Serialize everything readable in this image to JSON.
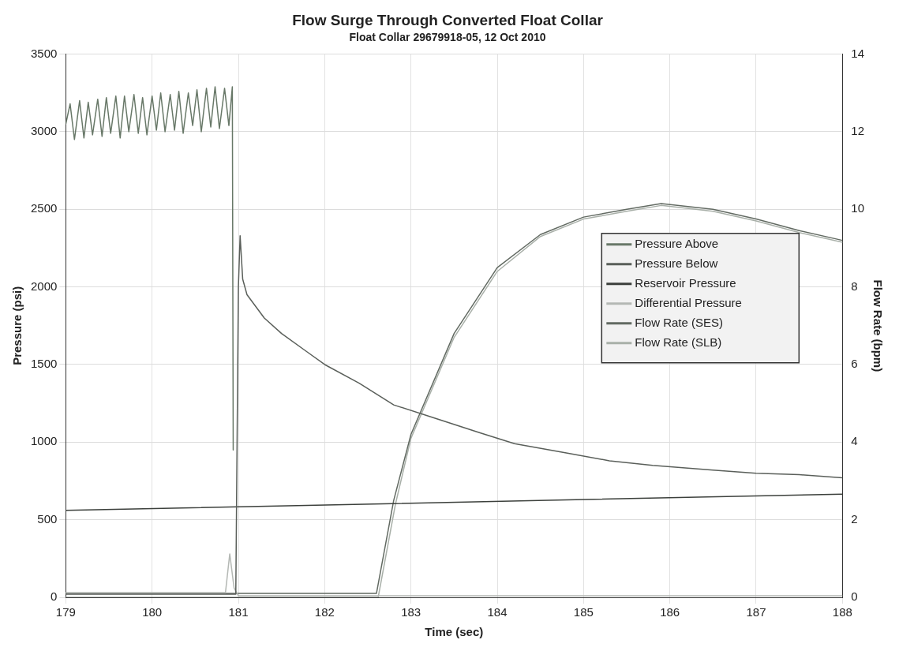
{
  "chart_data": {
    "type": "line",
    "title": "Flow Surge Through Converted Float Collar",
    "subtitle": "Float Collar 29679918-05, 12 Oct 2010",
    "xlabel": "Time (sec)",
    "ylabel": "Pressure (psi)",
    "y2label": "Flow Rate (bpm)",
    "xlim": [
      179,
      188
    ],
    "xticks": [
      179,
      180,
      181,
      182,
      183,
      184,
      185,
      186,
      187,
      188
    ],
    "ylim": [
      0,
      3500
    ],
    "yticks": [
      0,
      500,
      1000,
      1500,
      2000,
      2500,
      3000,
      3500
    ],
    "y2lim": [
      0,
      14
    ],
    "y2ticks": [
      0,
      2,
      4,
      6,
      8,
      10,
      12,
      14
    ],
    "grid": true,
    "legend": "right",
    "marker": "none",
    "line_style": "solid",
    "series": [
      {
        "name": "Pressure Above",
        "color": "#687868",
        "x": [
          179,
          179.05,
          179.1,
          179.16,
          179.21,
          179.26,
          179.31,
          179.37,
          179.42,
          179.47,
          179.52,
          179.58,
          179.63,
          179.68,
          179.73,
          179.79,
          179.84,
          179.89,
          179.94,
          180,
          180.05,
          180.1,
          180.15,
          180.21,
          180.26,
          180.31,
          180.36,
          180.42,
          180.47,
          180.52,
          180.57,
          180.63,
          180.68,
          180.73,
          180.78,
          180.84,
          180.89,
          180.93,
          180.94
        ],
        "values": [
          3050,
          3180,
          2950,
          3200,
          2960,
          3190,
          2980,
          3210,
          2970,
          3220,
          2990,
          3230,
          2960,
          3230,
          3000,
          3240,
          2990,
          3220,
          2980,
          3230,
          3010,
          3250,
          3000,
          3240,
          3010,
          3260,
          2990,
          3250,
          3040,
          3270,
          3000,
          3280,
          3030,
          3290,
          3020,
          3280,
          3040,
          3290,
          950
        ]
      },
      {
        "name": "Pressure Below",
        "color": "#5a5f5a",
        "x": [
          179,
          180.9,
          180.97,
          181,
          181.02,
          181.05,
          181.1,
          181.3,
          181.5,
          181.8,
          182,
          182.4,
          182.8,
          183.3,
          183.8,
          184.2,
          184.8,
          185.3,
          185.8,
          186.5,
          187,
          187.5,
          188
        ],
        "values": [
          20,
          20,
          20,
          2000,
          2330,
          2050,
          1950,
          1800,
          1700,
          1580,
          1500,
          1380,
          1240,
          1150,
          1060,
          990,
          930,
          880,
          850,
          820,
          800,
          790,
          770
        ]
      },
      {
        "name": "Reservoir Pressure",
        "color": "#3c403c",
        "x": [
          179,
          188
        ],
        "values": [
          560,
          665
        ]
      },
      {
        "name": "Differential Pressure",
        "color": "#b4b8b4",
        "x": [
          179,
          180.85,
          180.9,
          180.95,
          181,
          182.6,
          188
        ],
        "values": [
          30,
          30,
          280,
          60,
          10,
          10,
          10
        ]
      },
      {
        "name": "Flow Rate (SES)",
        "color": "#626a62",
        "axis": "y2",
        "x": [
          179,
          182.6,
          182.8,
          183,
          183.5,
          184,
          184.5,
          185,
          185.5,
          185.9,
          186.5,
          187,
          187.5,
          188
        ],
        "values": [
          0.1,
          0.1,
          2.5,
          4.2,
          6.8,
          8.5,
          9.35,
          9.8,
          10,
          10.15,
          10,
          9.75,
          9.45,
          9.2
        ]
      },
      {
        "name": "Flow Rate (SLB)",
        "color": "#a9b0a9",
        "axis": "y2",
        "x": [
          179,
          182.62,
          182.82,
          183,
          183.5,
          184,
          184.5,
          185,
          185.5,
          185.9,
          186.5,
          187,
          187.5,
          188
        ],
        "values": [
          0,
          0,
          2.4,
          4.1,
          6.7,
          8.4,
          9.3,
          9.75,
          9.95,
          10.1,
          9.95,
          9.7,
          9.4,
          9.15
        ]
      }
    ]
  }
}
